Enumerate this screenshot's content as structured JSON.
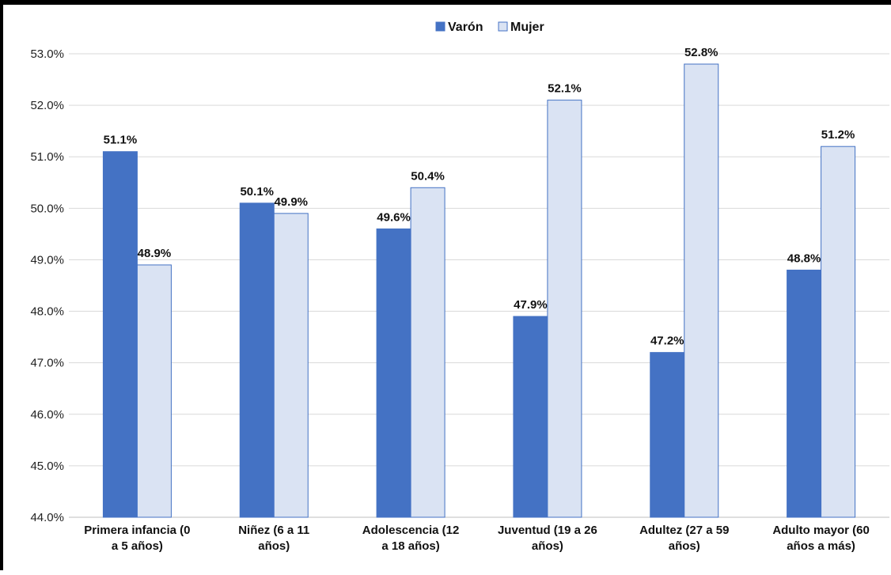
{
  "chart_data": {
    "type": "bar",
    "categories": [
      [
        "Primera infancia (0",
        "a 5 años)"
      ],
      [
        "Niñez (6 a 11",
        "años)"
      ],
      [
        "Adolescencia (12",
        "a 18 años)"
      ],
      [
        "Juventud (19 a 26",
        "años)"
      ],
      [
        "Adultez (27 a 59",
        "años)"
      ],
      [
        "Adulto mayor (60",
        "años a más)"
      ]
    ],
    "series": [
      {
        "name": "Varón",
        "color": "#4472C4",
        "values": [
          51.1,
          50.1,
          49.6,
          47.9,
          47.2,
          48.8
        ],
        "labels": [
          "51.1%",
          "50.1%",
          "49.6%",
          "47.9%",
          "47.2%",
          "48.8%"
        ]
      },
      {
        "name": "Mujer",
        "color": "#DAE3F3",
        "stroke": "#4472C4",
        "values": [
          48.9,
          49.9,
          50.4,
          52.1,
          52.8,
          51.2
        ],
        "labels": [
          "48.9%",
          "49.9%",
          "50.4%",
          "52.1%",
          "52.8%",
          "51.2%"
        ]
      }
    ],
    "ylim": [
      44.0,
      53.0
    ],
    "yticks": [
      "44.0%",
      "45.0%",
      "46.0%",
      "47.0%",
      "48.0%",
      "49.0%",
      "50.0%",
      "51.0%",
      "52.0%",
      "53.0%"
    ],
    "grid": true,
    "legend": "top-center",
    "title": "",
    "xlabel": "",
    "ylabel": ""
  }
}
